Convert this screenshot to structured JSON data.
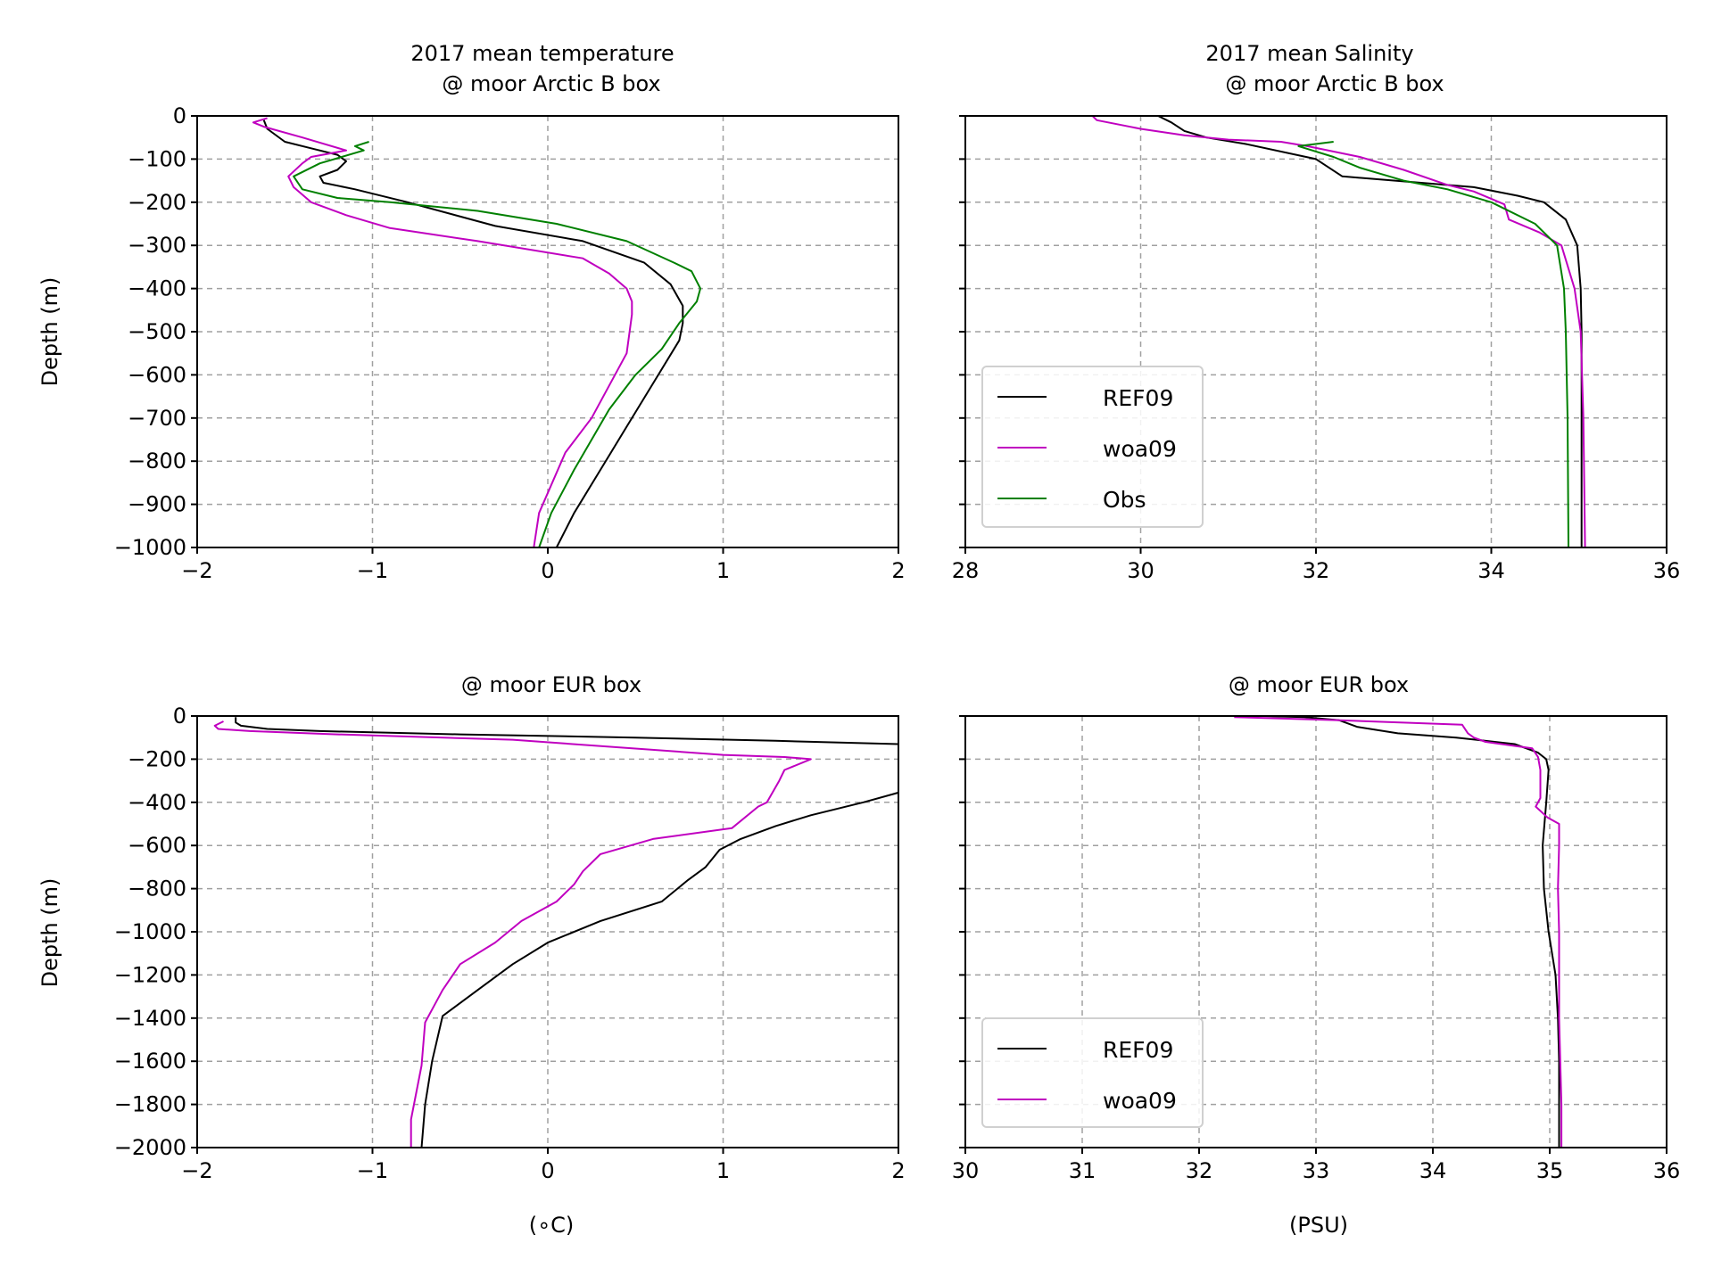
{
  "chart_data": [
    {
      "type": "line",
      "title_lines": [
        "2017 mean temperature",
        "@ moor Arctic B box"
      ],
      "xlabel": "",
      "ylabel": "Depth (m)",
      "xlim": [
        -2,
        2
      ],
      "ylim": [
        -1000,
        0
      ],
      "xticks": [
        -2,
        -1,
        0,
        1,
        2
      ],
      "xtick_labels": [
        "−2",
        "−1",
        "0",
        "1",
        "2"
      ],
      "yticks": [
        0,
        -100,
        -200,
        -300,
        -400,
        -500,
        -600,
        -700,
        -800,
        -900,
        -1000
      ],
      "ytick_labels": [
        "0",
        "−100",
        "−200",
        "−300",
        "−400",
        "−500",
        "−600",
        "−700",
        "−800",
        "−900",
        "−1000"
      ],
      "ytick_labels_visible": true,
      "grid": true,
      "series": [
        {
          "name": "REF09",
          "color": "#000000",
          "x": [
            -1.62,
            -1.6,
            -1.5,
            -1.35,
            -1.2,
            -1.15,
            -1.2,
            -1.3,
            -1.28,
            -1.1,
            -0.8,
            -0.3,
            0.2,
            0.55,
            0.7,
            0.77,
            0.77,
            0.75,
            0.6,
            0.45,
            0.3,
            0.15,
            0.05
          ],
          "y": [
            -10,
            -30,
            -60,
            -75,
            -90,
            -105,
            -125,
            -140,
            -155,
            -170,
            -200,
            -255,
            -290,
            -340,
            -390,
            -440,
            -480,
            -520,
            -620,
            -720,
            -820,
            -920,
            -1000
          ]
        },
        {
          "name": "woa09",
          "color": "#c000c0",
          "x": [
            -1.6,
            -1.68,
            -1.62,
            -1.4,
            -1.15,
            -1.35,
            -1.4,
            -1.48,
            -1.45,
            -1.35,
            -1.15,
            -0.9,
            -0.4,
            0.2,
            0.35,
            0.45,
            0.48,
            0.48,
            0.45,
            0.25,
            0.1,
            -0.05,
            -0.08
          ],
          "y": [
            -5,
            -15,
            -25,
            -50,
            -80,
            -95,
            -110,
            -140,
            -165,
            -200,
            -230,
            -260,
            -290,
            -330,
            -365,
            -400,
            -430,
            -460,
            -550,
            -700,
            -780,
            -920,
            -1000
          ]
        },
        {
          "name": "Obs",
          "color": "#008000",
          "x": [
            -1.02,
            -1.1,
            -1.05,
            -1.3,
            -1.45,
            -1.4,
            -1.2,
            -0.9,
            -0.4,
            0.05,
            0.45,
            0.72,
            0.82,
            0.87,
            0.85,
            0.75,
            0.65,
            0.5,
            0.35,
            0.15,
            0.02,
            -0.05
          ],
          "y": [
            -60,
            -70,
            -80,
            -110,
            -140,
            -170,
            -190,
            -200,
            -220,
            -250,
            -290,
            -340,
            -360,
            -400,
            -430,
            -480,
            -540,
            -600,
            -680,
            -820,
            -920,
            -1000
          ]
        }
      ]
    },
    {
      "type": "line",
      "title_lines": [
        "2017 mean Salinity",
        "@ moor Arctic B box"
      ],
      "xlabel": "",
      "ylabel": "",
      "xlim": [
        28,
        36
      ],
      "ylim": [
        -1000,
        0
      ],
      "xticks": [
        28,
        30,
        32,
        34,
        36
      ],
      "xtick_labels": [
        "28",
        "30",
        "32",
        "34",
        "36"
      ],
      "yticks": [
        0,
        -100,
        -200,
        -300,
        -400,
        -500,
        -600,
        -700,
        -800,
        -900,
        -1000
      ],
      "ytick_labels": [],
      "ytick_labels_visible": false,
      "grid": true,
      "legend": {
        "position": "lower-left",
        "entries": [
          "REF09",
          "woa09",
          "Obs"
        ]
      },
      "series": [
        {
          "name": "REF09",
          "color": "#000000",
          "x": [
            30.2,
            30.35,
            30.5,
            30.75,
            31.2,
            32.0,
            32.3,
            33.2,
            33.8,
            34.3,
            34.6,
            34.85,
            34.98,
            35.02,
            35.03,
            35.03,
            35.03
          ],
          "y": [
            0,
            -15,
            -35,
            -50,
            -65,
            -100,
            -140,
            -155,
            -165,
            -185,
            -200,
            -240,
            -300,
            -400,
            -500,
            -700,
            -1000
          ]
        },
        {
          "name": "woa09",
          "color": "#c000c0",
          "x": [
            29.45,
            29.5,
            30.0,
            30.5,
            31.0,
            31.6,
            31.9,
            32.5,
            33.0,
            33.5,
            33.8,
            34.15,
            34.2,
            34.55,
            34.8,
            34.95,
            35.02,
            35.05,
            35.07
          ],
          "y": [
            0,
            -10,
            -30,
            -45,
            -55,
            -60,
            -70,
            -95,
            -125,
            -160,
            -175,
            -205,
            -240,
            -270,
            -300,
            -400,
            -500,
            -700,
            -1000
          ]
        },
        {
          "name": "Obs",
          "color": "#008000",
          "x": [
            32.2,
            31.8,
            32.2,
            32.5,
            33.0,
            33.5,
            34.0,
            34.5,
            34.75,
            34.83,
            34.85,
            34.87,
            34.88
          ],
          "y": [
            -60,
            -70,
            -95,
            -120,
            -150,
            -170,
            -200,
            -250,
            -300,
            -400,
            -500,
            -700,
            -1000
          ]
        }
      ]
    },
    {
      "type": "line",
      "title_lines": [
        "@ moor EUR box"
      ],
      "xlabel": "(^∘C)",
      "xlabel_display": "(∘C)",
      "ylabel": "Depth (m)",
      "xlim": [
        -2,
        2
      ],
      "ylim": [
        -2000,
        0
      ],
      "xticks": [
        -2,
        -1,
        0,
        1,
        2
      ],
      "xtick_labels": [
        "−2",
        "−1",
        "0",
        "1",
        "2"
      ],
      "yticks": [
        0,
        -200,
        -400,
        -600,
        -800,
        -1000,
        -1200,
        -1400,
        -1600,
        -1800,
        -2000
      ],
      "ytick_labels": [
        "0",
        "−200",
        "−400",
        "−600",
        "−800",
        "−1000",
        "−1200",
        "−1400",
        "−1600",
        "−1800",
        "−2000"
      ],
      "ytick_labels_visible": true,
      "grid": true,
      "series": [
        {
          "name": "REF09",
          "color": "#000000",
          "x": [
            -1.78,
            -1.78,
            -1.75,
            -1.6,
            -1.3,
            -0.5,
            0.5,
            1.3,
            2.0,
            2.3,
            2.3,
            2.0,
            1.8,
            1.5,
            1.3,
            1.1,
            0.98,
            0.9,
            0.8,
            0.65,
            0.3,
            0.0,
            -0.2,
            -0.4,
            -0.6,
            -0.66,
            -0.7,
            -0.72
          ],
          "y": [
            -5,
            -30,
            -45,
            -60,
            -70,
            -85,
            -100,
            -115,
            -130,
            -200,
            -300,
            -355,
            -400,
            -460,
            -510,
            -570,
            -620,
            -700,
            -760,
            -860,
            -950,
            -1050,
            -1150,
            -1270,
            -1390,
            -1600,
            -1800,
            -2000
          ]
        },
        {
          "name": "woa09",
          "color": "#c000c0",
          "x": [
            -1.85,
            -1.9,
            -1.88,
            -1.7,
            -1.2,
            -0.2,
            1.0,
            1.35,
            1.5,
            1.35,
            1.32,
            1.25,
            1.2,
            1.05,
            0.6,
            0.3,
            0.2,
            0.15,
            0.05,
            -0.15,
            -0.3,
            -0.5,
            -0.6,
            -0.7,
            -0.72,
            -0.78,
            -0.78
          ],
          "y": [
            -25,
            -45,
            -60,
            -70,
            -85,
            -110,
            -180,
            -190,
            -200,
            -250,
            -300,
            -400,
            -420,
            -520,
            -570,
            -640,
            -720,
            -780,
            -860,
            -950,
            -1050,
            -1150,
            -1270,
            -1420,
            -1620,
            -1870,
            -2000
          ]
        }
      ]
    },
    {
      "type": "line",
      "title_lines": [
        "@ moor EUR box"
      ],
      "xlabel": "(PSU)",
      "ylabel": "",
      "xlim": [
        30,
        36
      ],
      "ylim": [
        -2000,
        0
      ],
      "xticks": [
        30,
        31,
        32,
        33,
        34,
        35,
        36
      ],
      "xtick_labels": [
        "30",
        "31",
        "32",
        "33",
        "34",
        "35",
        "36"
      ],
      "yticks": [
        0,
        -200,
        -400,
        -600,
        -800,
        -1000,
        -1200,
        -1400,
        -1600,
        -1800,
        -2000
      ],
      "ytick_labels": [],
      "ytick_labels_visible": false,
      "grid": true,
      "legend": {
        "position": "lower-left",
        "entries": [
          "REF09",
          "woa09"
        ]
      },
      "series": [
        {
          "name": "REF09",
          "color": "#000000",
          "x": [
            32.55,
            32.9,
            33.2,
            33.35,
            33.7,
            34.2,
            34.7,
            34.9,
            34.97,
            34.99,
            34.97,
            34.94,
            34.95,
            34.99,
            35.05,
            35.07,
            35.08,
            35.08
          ],
          "y": [
            0,
            -5,
            -20,
            -50,
            -80,
            -100,
            -130,
            -170,
            -200,
            -250,
            -400,
            -600,
            -800,
            -1000,
            -1200,
            -1400,
            -1600,
            -2000
          ]
        },
        {
          "name": "woa09",
          "color": "#c000c0",
          "x": [
            32.3,
            32.6,
            33.2,
            34.25,
            34.3,
            34.35,
            34.45,
            34.85,
            34.9,
            34.92,
            34.92,
            34.88,
            34.98,
            35.08,
            35.08,
            35.07,
            35.08,
            35.08,
            35.08,
            35.1,
            35.1
          ],
          "y": [
            -5,
            -10,
            -20,
            -40,
            -80,
            -100,
            -120,
            -150,
            -190,
            -250,
            -380,
            -420,
            -470,
            -500,
            -600,
            -800,
            -1000,
            -1200,
            -1400,
            -1800,
            -2000
          ]
        }
      ]
    }
  ]
}
